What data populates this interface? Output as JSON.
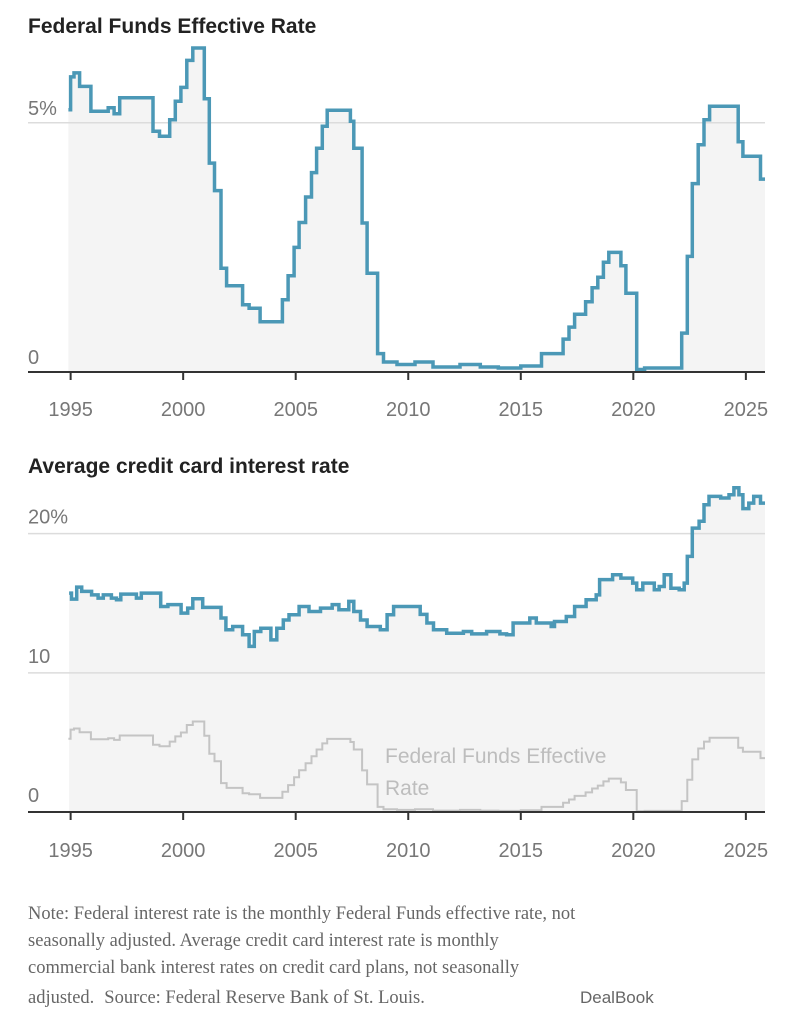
{
  "chart_data": [
    {
      "type": "line",
      "title": "Federal Funds Effective Rate",
      "step": true,
      "xlim": [
        1994.75,
        2025.85
      ],
      "ylim": [
        0,
        6.6
      ],
      "x_ticks": [
        1995,
        2000,
        2005,
        2010,
        2015,
        2020,
        2025
      ],
      "x_tick_labels": [
        "1995",
        "2000",
        "2005",
        "2010",
        "2015",
        "2020",
        "2025"
      ],
      "y_ticks": [
        0,
        5
      ],
      "y_tick_labels": [
        "0",
        "5%"
      ],
      "grid": true,
      "line_color": "#4b98b6",
      "fill_color": "#f4f4f4",
      "series": [
        {
          "x": [
            1994.9,
            1995.0,
            1995.15,
            1995.4,
            1995.9,
            1996.67,
            1996.93,
            1997.18,
            1998.66,
            1998.95,
            1999.4,
            1999.65,
            1999.9,
            2000.16,
            2000.43,
            2000.94,
            2001.16,
            2001.39,
            2001.68,
            2001.93,
            2002.64,
            2002.93,
            2003.42,
            2004.41,
            2004.66,
            2004.93,
            2005.15,
            2005.44,
            2005.7,
            2005.93,
            2006.18,
            2006.4,
            2007.43,
            2007.58,
            2007.95,
            2008.17,
            2008.64,
            2008.9,
            2009.5,
            2010.3,
            2011.1,
            2012.3,
            2013.2,
            2014.0,
            2015.0,
            2015.92,
            2016.88,
            2017.14,
            2017.39,
            2017.88,
            2018.17,
            2018.42,
            2018.67,
            2018.91,
            2019.45,
            2019.67,
            2020.15,
            2020.5,
            2022.15,
            2022.4,
            2022.62,
            2022.88,
            2023.14,
            2023.39,
            2024.66,
            2024.87,
            2025.65
          ],
          "y": [
            5.26,
            5.92,
            6.0,
            5.73,
            5.23,
            5.3,
            5.18,
            5.5,
            4.83,
            4.73,
            5.06,
            5.43,
            5.71,
            6.25,
            6.5,
            5.48,
            4.19,
            3.64,
            2.08,
            1.73,
            1.35,
            1.28,
            1.01,
            1.45,
            1.93,
            2.5,
            3.0,
            3.51,
            4.0,
            4.49,
            4.93,
            5.25,
            5.03,
            4.49,
            2.99,
            1.98,
            0.37,
            0.2,
            0.15,
            0.2,
            0.1,
            0.15,
            0.1,
            0.08,
            0.12,
            0.37,
            0.66,
            0.9,
            1.16,
            1.41,
            1.69,
            1.9,
            2.2,
            2.4,
            2.13,
            1.58,
            0.05,
            0.08,
            0.78,
            2.32,
            3.78,
            4.56,
            5.06,
            5.33,
            4.62,
            4.33,
            3.87
          ]
        }
      ]
    },
    {
      "type": "line",
      "title": "Average credit card interest rate",
      "step": true,
      "xlim": [
        1994.75,
        2025.85
      ],
      "ylim": [
        0,
        24
      ],
      "x_ticks": [
        1995,
        2000,
        2005,
        2010,
        2015,
        2020,
        2025
      ],
      "x_tick_labels": [
        "1995",
        "2000",
        "2005",
        "2010",
        "2015",
        "2020",
        "2025"
      ],
      "y_ticks": [
        0,
        10,
        20
      ],
      "y_tick_labels": [
        "0",
        "10",
        "20%"
      ],
      "grid": true,
      "line_color": "#4b98b6",
      "comparison_color": "#c4c4c4",
      "fill_color": "#f4f4f4",
      "annotation": "Federal Funds Effective Rate",
      "annotation_lines": [
        "Federal Funds Effective",
        "Rate"
      ],
      "series": [
        {
          "x": [
            1994.93,
            1995.04,
            1995.27,
            1995.49,
            1995.93,
            1996.22,
            1996.45,
            1996.81,
            1997.04,
            1997.23,
            1997.92,
            1998.14,
            1999.0,
            1999.32,
            1999.91,
            2000.2,
            2000.43,
            2000.87,
            2001.68,
            2001.9,
            2002.2,
            2002.64,
            2002.93,
            2003.16,
            2003.45,
            2003.9,
            2004.16,
            2004.45,
            2004.7,
            2005.15,
            2005.59,
            2006.1,
            2006.62,
            2006.92,
            2007.36,
            2007.58,
            2007.88,
            2008.17,
            2008.76,
            2009.06,
            2009.35,
            2010.53,
            2010.83,
            2011.12,
            2011.71,
            2012.45,
            2012.82,
            2013.48,
            2014.07,
            2014.37,
            2014.66,
            2015.4,
            2015.69,
            2016.35,
            2016.5,
            2017.02,
            2017.39,
            2017.9,
            2018.35,
            2018.5,
            2019.08,
            2019.45,
            2019.97,
            2020.15,
            2020.42,
            2020.93,
            2021.15,
            2021.37,
            2021.67,
            2022.04,
            2022.26,
            2022.4,
            2022.62,
            2022.92,
            2023.14,
            2023.36,
            2023.88,
            2024.25,
            2024.47,
            2024.69,
            2024.87,
            2025.13,
            2025.35,
            2025.65
          ],
          "y": [
            15.73,
            15.3,
            16.16,
            15.85,
            15.6,
            15.37,
            15.6,
            15.37,
            15.25,
            15.66,
            15.37,
            15.73,
            14.77,
            14.9,
            14.29,
            14.65,
            15.32,
            14.7,
            13.94,
            13.1,
            13.33,
            12.73,
            11.9,
            12.97,
            13.2,
            12.37,
            13.2,
            13.8,
            14.17,
            14.77,
            14.41,
            14.65,
            14.9,
            14.53,
            15.13,
            14.41,
            13.8,
            13.33,
            13.1,
            14.17,
            14.77,
            14.2,
            13.58,
            13.09,
            12.85,
            12.97,
            12.8,
            12.97,
            12.8,
            12.73,
            13.58,
            13.94,
            13.58,
            13.33,
            13.69,
            14.05,
            14.77,
            15.25,
            15.6,
            16.7,
            17.05,
            16.81,
            16.45,
            15.97,
            16.45,
            15.97,
            16.2,
            17.05,
            16.08,
            15.97,
            16.45,
            18.37,
            20.4,
            20.89,
            22.08,
            22.68,
            22.56,
            22.8,
            23.3,
            22.8,
            21.8,
            22.2,
            22.68,
            22.2
          ]
        }
      ]
    }
  ],
  "footer": {
    "note_lines": [
      "Note: Federal interest rate is the monthly Federal Funds effective rate, not",
      "seasonally adjusted. Average credit card interest rate is monthly",
      "commercial bank interest rates on credit card plans, not seasonally",
      "adjusted."
    ],
    "source": "Source: Federal Reserve Bank of St. Louis.",
    "credit": "DealBook"
  }
}
